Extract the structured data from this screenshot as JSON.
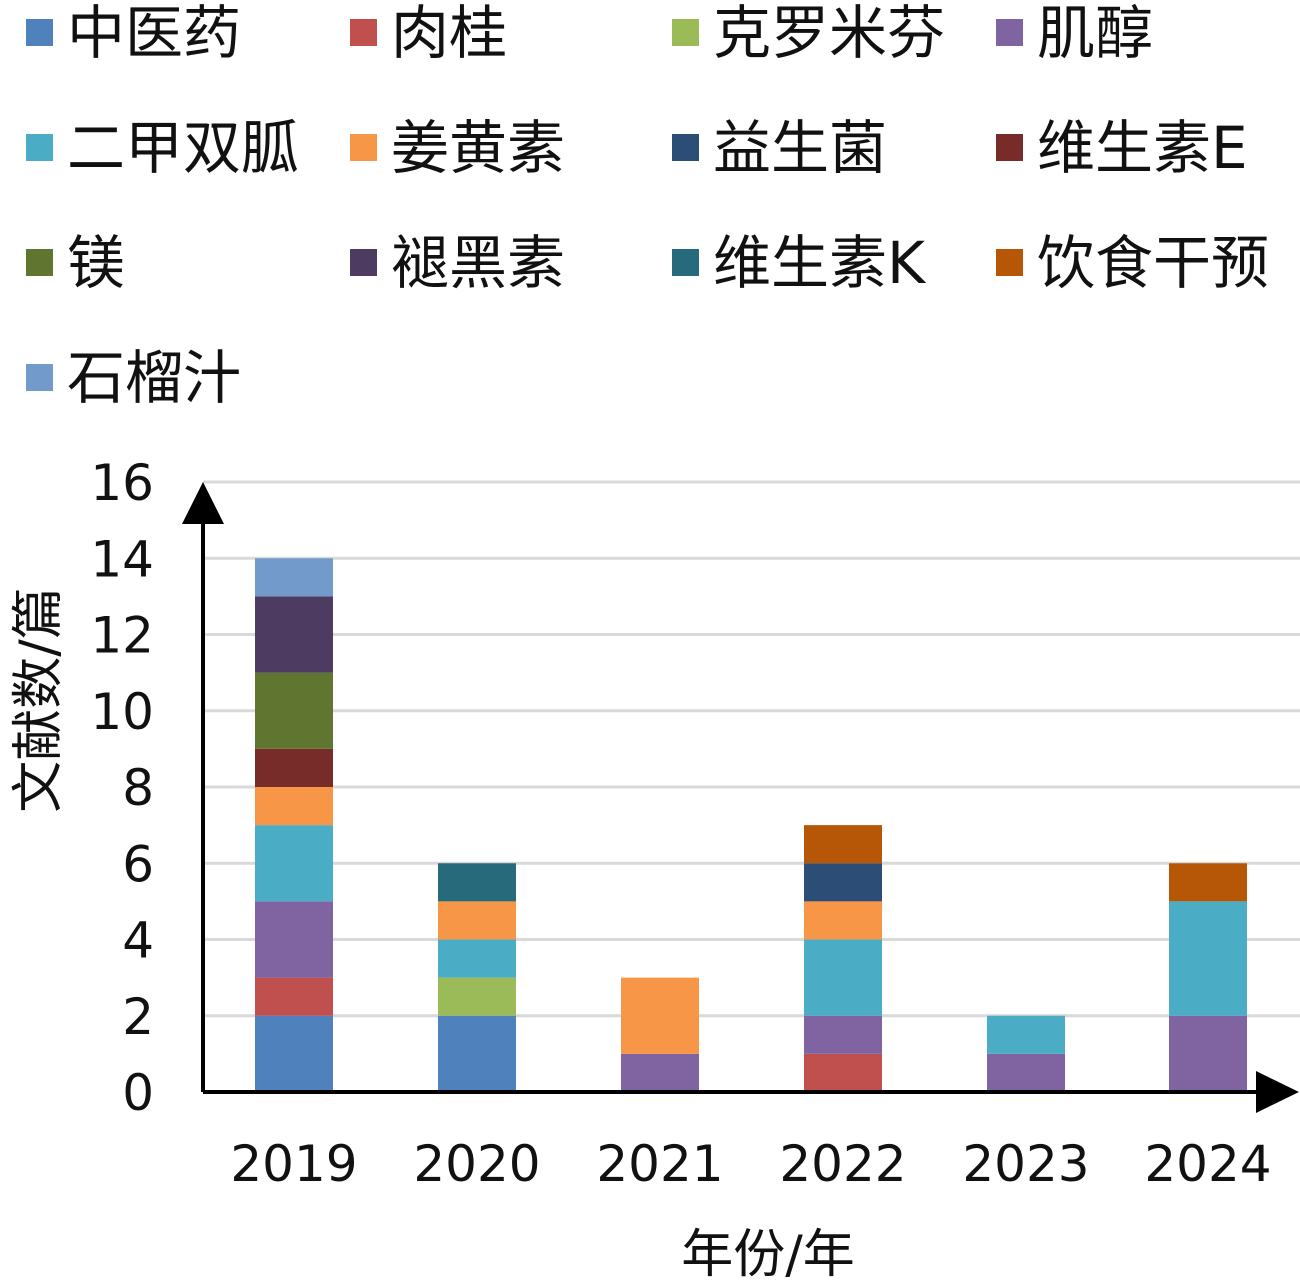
{
  "chart_data": {
    "type": "bar",
    "stacked": true,
    "title": "",
    "xlabel": "年份/年",
    "ylabel": "文献数/篇",
    "ylim": [
      0,
      16
    ],
    "yticks": [
      0,
      2,
      4,
      6,
      8,
      10,
      12,
      14,
      16
    ],
    "grid": true,
    "legend_position": "top",
    "categories": [
      "2019",
      "2020",
      "2021",
      "2022",
      "2023",
      "2024"
    ],
    "series": [
      {
        "name": "中医药",
        "color": "#4F81BD",
        "values": [
          2,
          2,
          0,
          0,
          0,
          0
        ]
      },
      {
        "name": "肉桂",
        "color": "#C0504D",
        "values": [
          1,
          0,
          0,
          1,
          0,
          0
        ]
      },
      {
        "name": "克罗米芬",
        "color": "#9BBB59",
        "values": [
          0,
          1,
          0,
          0,
          0,
          0
        ]
      },
      {
        "name": "肌醇",
        "color": "#8064A2",
        "values": [
          2,
          0,
          1,
          1,
          1,
          2
        ]
      },
      {
        "name": "二甲双胍",
        "color": "#4BACC6",
        "values": [
          2,
          1,
          0,
          2,
          1,
          3
        ]
      },
      {
        "name": "姜黄素",
        "color": "#F79646",
        "values": [
          1,
          1,
          2,
          1,
          0,
          0
        ]
      },
      {
        "name": "益生菌",
        "color": "#2C4D75",
        "values": [
          0,
          0,
          0,
          1,
          0,
          0
        ]
      },
      {
        "name": "维生素E",
        "color": "#772C2A",
        "values": [
          1,
          0,
          0,
          0,
          0,
          0
        ]
      },
      {
        "name": "镁",
        "color": "#5F7530",
        "values": [
          2,
          0,
          0,
          0,
          0,
          0
        ]
      },
      {
        "name": "褪黑素",
        "color": "#4D3B62",
        "values": [
          2,
          0,
          0,
          0,
          0,
          0
        ]
      },
      {
        "name": "维生素K",
        "color": "#276A7C",
        "values": [
          0,
          1,
          0,
          0,
          0,
          0
        ]
      },
      {
        "name": "饮食干预",
        "color": "#B65708",
        "values": [
          0,
          0,
          0,
          1,
          0,
          1
        ]
      },
      {
        "name": "石榴汁",
        "color": "#729ACA",
        "values": [
          1,
          0,
          0,
          0,
          0,
          0
        ]
      }
    ]
  }
}
